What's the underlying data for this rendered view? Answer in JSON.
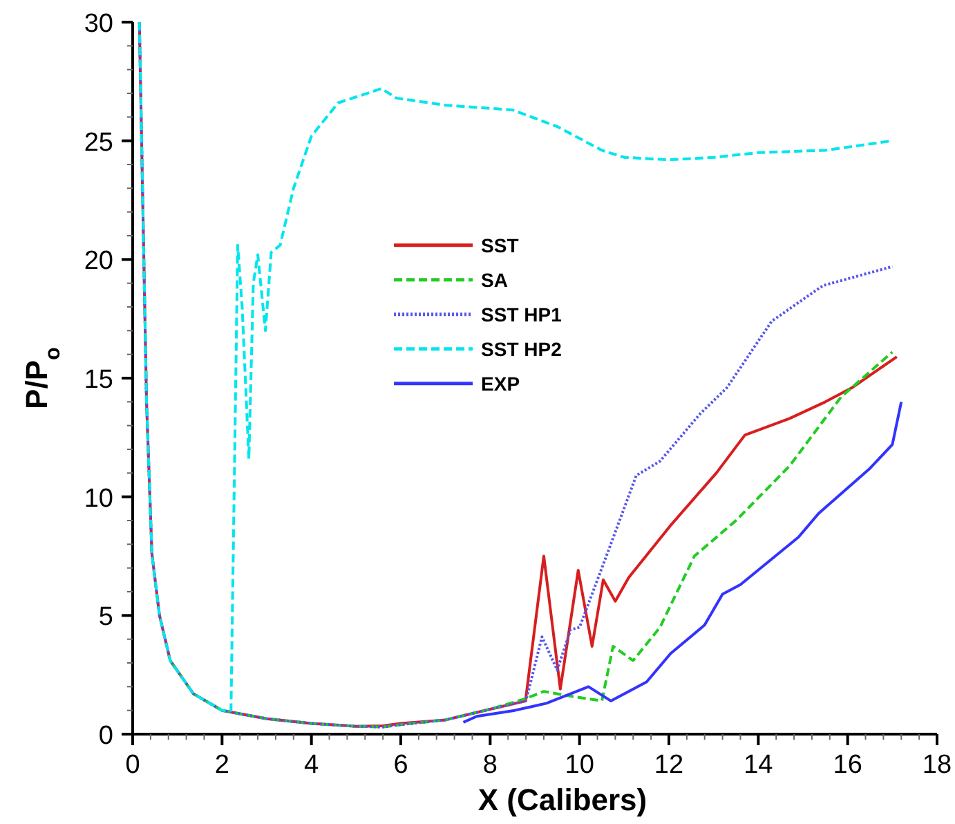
{
  "chart_data": {
    "type": "line",
    "xlabel": "X (Calibers)",
    "ylabel": "P/P$_{o}$",
    "xlim": [
      0,
      18
    ],
    "ylim": [
      0,
      30
    ],
    "xticks": [
      0,
      2,
      4,
      6,
      8,
      10,
      12,
      14,
      16,
      18
    ],
    "yticks": [
      0,
      5,
      10,
      15,
      20,
      25,
      30
    ],
    "grid": false,
    "legend": "top",
    "series": [
      {
        "name": "SST",
        "color": "#d81e1e",
        "line_style": "solid",
        "x": [
          0.15,
          0.31,
          0.43,
          0.6,
          0.84,
          1.36,
          2,
          3,
          4,
          5,
          5.6,
          6,
          7,
          8,
          8.79,
          9.2,
          9.57,
          9.97,
          10.28,
          10.53,
          10.8,
          11.1,
          12.04,
          13.06,
          13.7,
          14.7,
          15.5,
          16.1,
          17.1
        ],
        "values": [
          30,
          14,
          7.6,
          5,
          3.1,
          1.7,
          1.0,
          0.65,
          0.45,
          0.33,
          0.35,
          0.45,
          0.6,
          1.05,
          1.4,
          7.5,
          1.9,
          6.9,
          3.7,
          6.5,
          5.6,
          6.6,
          8.8,
          11.0,
          12.6,
          13.3,
          14.0,
          14.6,
          15.9
        ]
      },
      {
        "name": "SA",
        "color": "#22cc22",
        "line_style": "dashed",
        "x": [
          0.84,
          1.36,
          2,
          3,
          4,
          5,
          5.6,
          6,
          7,
          8,
          8.8,
          9.2,
          9.8,
          10.5,
          10.75,
          11.2,
          11.8,
          12.57,
          13.5,
          14.7,
          15.85,
          17.0
        ],
        "values": [
          3.1,
          1.7,
          1.0,
          0.65,
          0.45,
          0.33,
          0.3,
          0.4,
          0.6,
          1.05,
          1.5,
          1.8,
          1.6,
          1.4,
          3.7,
          3.1,
          4.5,
          7.5,
          9.0,
          11.3,
          14.2,
          16.1
        ]
      },
      {
        "name": "SST HP1",
        "color": "#5555ee",
        "line_style": "dotted",
        "x": [
          0.15,
          0.31,
          0.43,
          0.6,
          0.84,
          1.36,
          2,
          3,
          4,
          5,
          5.6,
          6,
          7,
          8,
          8.8,
          9.16,
          9.5,
          9.8,
          10.0,
          10.6,
          11.27,
          11.8,
          12.7,
          13.3,
          14.3,
          15.45,
          17.0
        ],
        "values": [
          30,
          14,
          7.6,
          5,
          3.1,
          1.7,
          1.0,
          0.65,
          0.45,
          0.33,
          0.3,
          0.4,
          0.6,
          1.05,
          1.4,
          4.1,
          2.7,
          4.4,
          4.5,
          7.5,
          10.9,
          11.5,
          13.5,
          14.6,
          17.4,
          18.9,
          19.7
        ]
      },
      {
        "name": "SST HP2",
        "color": "#00e5ee",
        "line_style": "dashed",
        "x": [
          0.15,
          0.31,
          0.43,
          0.6,
          0.84,
          1.36,
          2,
          2.2,
          2.35,
          2.45,
          2.6,
          2.7,
          2.8,
          2.97,
          3.1,
          3.3,
          3.6,
          4,
          4.6,
          5.57,
          5.9,
          7,
          8.5,
          9.5,
          10.5,
          11,
          12,
          13,
          14,
          15.5,
          17
        ],
        "values": [
          30,
          14,
          7.6,
          5,
          3.1,
          1.7,
          1.0,
          1.0,
          20.6,
          18,
          11.6,
          19,
          20.2,
          17,
          20.3,
          20.6,
          23,
          25.2,
          26.6,
          27.2,
          26.8,
          26.5,
          26.3,
          25.6,
          24.6,
          24.3,
          24.2,
          24.3,
          24.5,
          24.6,
          25.0
        ]
      },
      {
        "name": "EXP",
        "color": "#3333ff",
        "line_style": "solid",
        "x": [
          7.4,
          7.7,
          8.55,
          9.26,
          10.2,
          10.7,
          11.5,
          12.04,
          12.8,
          13.2,
          13.6,
          14.9,
          15.35,
          16.5,
          17.0,
          17.2
        ],
        "values": [
          0.5,
          0.75,
          1.0,
          1.3,
          2.0,
          1.4,
          2.2,
          3.4,
          4.6,
          5.9,
          6.3,
          8.3,
          9.3,
          11.2,
          12.2,
          14.0
        ]
      }
    ]
  }
}
